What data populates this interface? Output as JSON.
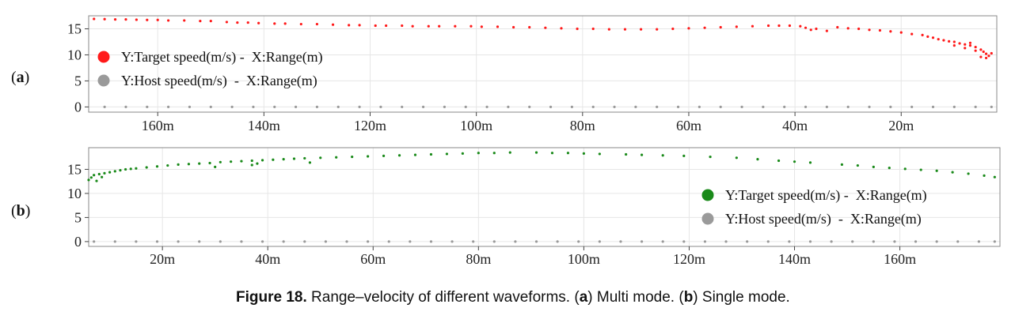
{
  "caption": {
    "label": "Figure 18.",
    "text": "Range–velocity of different waveforms.",
    "part_a_letter": "a",
    "part_a_text": "Multi mode.",
    "part_b_letter": "b",
    "part_b_text": "Single mode."
  },
  "colors": {
    "target_a": "#ff1a1a",
    "target_b": "#1a8a1a",
    "host": "#9a9a9a",
    "grid": "#e6e6e6",
    "frame": "#888888"
  },
  "chart_data": [
    {
      "type": "scatter",
      "panel_label": "(a)",
      "x_direction": "reversed",
      "xlim": [
        173,
        2
      ],
      "ylim": [
        -1,
        17.5
      ],
      "xticks": [
        160,
        140,
        120,
        100,
        80,
        60,
        40,
        20
      ],
      "xtick_labels": [
        "160m",
        "140m",
        "120m",
        "100m",
        "80m",
        "60m",
        "40m",
        "20m"
      ],
      "yticks": [
        0,
        5,
        10,
        15
      ],
      "ytick_labels": [
        "0",
        "5",
        "10",
        "15"
      ],
      "grid": true,
      "legend_position": "left",
      "series": [
        {
          "name": "Y:Target speed(m/s) -  X:Range(m)",
          "color": "#ff1a1a",
          "points": [
            [
              172,
              16.9
            ],
            [
              170,
              16.85
            ],
            [
              168,
              16.8
            ],
            [
              166,
              16.8
            ],
            [
              164,
              16.75
            ],
            [
              162,
              16.7
            ],
            [
              160,
              16.7
            ],
            [
              158,
              16.6
            ],
            [
              155,
              16.6
            ],
            [
              152,
              16.5
            ],
            [
              150,
              16.5
            ],
            [
              147,
              16.3
            ],
            [
              145,
              16.2
            ],
            [
              143,
              16.2
            ],
            [
              141,
              16.1
            ],
            [
              138,
              16.0
            ],
            [
              136,
              16.0
            ],
            [
              133,
              15.9
            ],
            [
              130,
              15.9
            ],
            [
              127,
              15.8
            ],
            [
              124,
              15.7
            ],
            [
              122,
              15.7
            ],
            [
              119,
              15.6
            ],
            [
              117,
              15.6
            ],
            [
              114,
              15.6
            ],
            [
              112,
              15.5
            ],
            [
              109,
              15.5
            ],
            [
              107,
              15.5
            ],
            [
              104,
              15.5
            ],
            [
              101,
              15.5
            ],
            [
              99,
              15.4
            ],
            [
              96,
              15.4
            ],
            [
              93,
              15.3
            ],
            [
              90,
              15.3
            ],
            [
              87,
              15.2
            ],
            [
              84,
              15.1
            ],
            [
              81,
              15.0
            ],
            [
              78,
              15.0
            ],
            [
              75,
              14.9
            ],
            [
              72,
              14.9
            ],
            [
              69,
              14.9
            ],
            [
              66,
              14.9
            ],
            [
              63,
              15.0
            ],
            [
              60,
              15.1
            ],
            [
              57,
              15.2
            ],
            [
              54,
              15.3
            ],
            [
              51,
              15.4
            ],
            [
              48,
              15.5
            ],
            [
              45,
              15.6
            ],
            [
              43,
              15.6
            ],
            [
              41,
              15.6
            ],
            [
              39,
              15.5
            ],
            [
              38,
              15.2
            ],
            [
              37,
              14.8
            ],
            [
              36,
              15.0
            ],
            [
              34,
              14.6
            ],
            [
              32,
              15.3
            ],
            [
              30,
              15.1
            ],
            [
              28,
              15.0
            ],
            [
              26,
              14.8
            ],
            [
              24,
              14.7
            ],
            [
              22,
              14.5
            ],
            [
              20,
              14.3
            ],
            [
              18,
              14.0
            ],
            [
              16,
              13.8
            ],
            [
              15,
              13.5
            ],
            [
              14,
              13.3
            ],
            [
              13,
              13.0
            ],
            [
              12,
              12.8
            ],
            [
              11,
              12.6
            ],
            [
              10,
              12.5
            ],
            [
              9,
              12.2
            ],
            [
              8,
              12.0
            ],
            [
              7,
              11.8
            ],
            [
              6,
              11.5
            ],
            [
              5,
              11.0
            ],
            [
              4.5,
              10.6
            ],
            [
              4,
              10.2
            ],
            [
              3.5,
              9.8
            ],
            [
              3,
              10.3
            ],
            [
              8,
              11.3
            ],
            [
              6,
              10.8
            ],
            [
              5,
              9.6
            ],
            [
              10,
              11.8
            ],
            [
              7,
              12.3
            ],
            [
              4,
              9.4
            ]
          ]
        },
        {
          "name": "Y:Host speed(m/s)  -  X:Range(m)",
          "color": "#9a9a9a",
          "points": [
            [
              170,
              0
            ],
            [
              166,
              0
            ],
            [
              162,
              0
            ],
            [
              158,
              0
            ],
            [
              154,
              0
            ],
            [
              150,
              0
            ],
            [
              146,
              0
            ],
            [
              142,
              0
            ],
            [
              138,
              0
            ],
            [
              134,
              0
            ],
            [
              130,
              0
            ],
            [
              126,
              0
            ],
            [
              122,
              0
            ],
            [
              118,
              0
            ],
            [
              114,
              0
            ],
            [
              110,
              0
            ],
            [
              106,
              0
            ],
            [
              102,
              0
            ],
            [
              98,
              0
            ],
            [
              94,
              0
            ],
            [
              90,
              0
            ],
            [
              86,
              0
            ],
            [
              82,
              0
            ],
            [
              78,
              0
            ],
            [
              74,
              0
            ],
            [
              70,
              0
            ],
            [
              66,
              0
            ],
            [
              62,
              0
            ],
            [
              58,
              0
            ],
            [
              54,
              0
            ],
            [
              50,
              0
            ],
            [
              46,
              0
            ],
            [
              42,
              0
            ],
            [
              38,
              0
            ],
            [
              34,
              0
            ],
            [
              30,
              0
            ],
            [
              26,
              0
            ],
            [
              22,
              0
            ],
            [
              18,
              0
            ],
            [
              14,
              0
            ],
            [
              10,
              0
            ],
            [
              6,
              0
            ],
            [
              3,
              0
            ]
          ]
        }
      ]
    },
    {
      "type": "scatter",
      "panel_label": "(b)",
      "x_direction": "normal",
      "xlim": [
        6,
        179
      ],
      "ylim": [
        -1,
        19.5
      ],
      "xticks": [
        20,
        40,
        60,
        80,
        100,
        120,
        140,
        160
      ],
      "xtick_labels": [
        "20m",
        "40m",
        "60m",
        "80m",
        "100m",
        "120m",
        "140m",
        "160m"
      ],
      "yticks": [
        0,
        5,
        10,
        15
      ],
      "ytick_labels": [
        "0",
        "5",
        "10",
        "15"
      ],
      "grid": true,
      "legend_position": "right",
      "series": [
        {
          "name": "Y:Target speed(m/s) -  X:Range(m)",
          "color": "#1a8a1a",
          "points": [
            [
              6,
              12.8
            ],
            [
              6.5,
              13.3
            ],
            [
              7,
              13.8
            ],
            [
              7.5,
              12.6
            ],
            [
              8,
              14.0
            ],
            [
              8.5,
              13.4
            ],
            [
              9,
              14.2
            ],
            [
              10,
              14.4
            ],
            [
              11,
              14.6
            ],
            [
              12,
              14.8
            ],
            [
              13,
              15.0
            ],
            [
              14,
              15.1
            ],
            [
              15,
              15.2
            ],
            [
              17,
              15.4
            ],
            [
              19,
              15.6
            ],
            [
              21,
              15.8
            ],
            [
              23,
              16.0
            ],
            [
              25,
              16.1
            ],
            [
              27,
              16.2
            ],
            [
              29,
              16.3
            ],
            [
              31,
              16.5
            ],
            [
              33,
              16.6
            ],
            [
              35,
              16.7
            ],
            [
              37,
              16.8
            ],
            [
              39,
              16.9
            ],
            [
              41,
              17.0
            ],
            [
              43,
              17.1
            ],
            [
              45,
              17.2
            ],
            [
              47,
              17.3
            ],
            [
              50,
              17.4
            ],
            [
              53,
              17.5
            ],
            [
              56,
              17.6
            ],
            [
              59,
              17.7
            ],
            [
              62,
              17.8
            ],
            [
              65,
              17.9
            ],
            [
              68,
              18.0
            ],
            [
              71,
              18.1
            ],
            [
              74,
              18.2
            ],
            [
              77,
              18.3
            ],
            [
              80,
              18.4
            ],
            [
              83,
              18.4
            ],
            [
              86,
              18.5
            ],
            [
              91,
              18.5
            ],
            [
              94,
              18.4
            ],
            [
              97,
              18.4
            ],
            [
              100,
              18.3
            ],
            [
              103,
              18.2
            ],
            [
              108,
              18.1
            ],
            [
              111,
              18.0
            ],
            [
              115,
              17.9
            ],
            [
              119,
              17.8
            ],
            [
              124,
              17.6
            ],
            [
              129,
              17.4
            ],
            [
              133,
              17.1
            ],
            [
              137,
              16.8
            ],
            [
              140,
              16.6
            ],
            [
              143,
              16.4
            ],
            [
              149,
              16.0
            ],
            [
              152,
              15.8
            ],
            [
              155,
              15.5
            ],
            [
              158,
              15.3
            ],
            [
              161,
              15.1
            ],
            [
              164,
              14.9
            ],
            [
              167,
              14.7
            ],
            [
              170,
              14.4
            ],
            [
              173,
              14.1
            ],
            [
              176,
              13.7
            ],
            [
              178,
              13.4
            ],
            [
              30,
              15.5
            ],
            [
              37,
              15.9
            ],
            [
              48,
              16.4
            ],
            [
              38,
              16.2
            ]
          ]
        },
        {
          "name": "Y:Host speed(m/s)  -  X:Range(m)",
          "color": "#9a9a9a",
          "points": [
            [
              7,
              0
            ],
            [
              11,
              0
            ],
            [
              15,
              0
            ],
            [
              19,
              0
            ],
            [
              23,
              0
            ],
            [
              27,
              0
            ],
            [
              31,
              0
            ],
            [
              35,
              0
            ],
            [
              39,
              0
            ],
            [
              43,
              0
            ],
            [
              47,
              0
            ],
            [
              51,
              0
            ],
            [
              55,
              0
            ],
            [
              59,
              0
            ],
            [
              63,
              0
            ],
            [
              67,
              0
            ],
            [
              71,
              0
            ],
            [
              75,
              0
            ],
            [
              79,
              0
            ],
            [
              83,
              0
            ],
            [
              87,
              0
            ],
            [
              91,
              0
            ],
            [
              95,
              0
            ],
            [
              99,
              0
            ],
            [
              103,
              0
            ],
            [
              107,
              0
            ],
            [
              111,
              0
            ],
            [
              115,
              0
            ],
            [
              119,
              0
            ],
            [
              123,
              0
            ],
            [
              127,
              0
            ],
            [
              131,
              0
            ],
            [
              135,
              0
            ],
            [
              139,
              0
            ],
            [
              143,
              0
            ],
            [
              147,
              0
            ],
            [
              151,
              0
            ],
            [
              155,
              0
            ],
            [
              159,
              0
            ],
            [
              163,
              0
            ],
            [
              167,
              0
            ],
            [
              171,
              0
            ],
            [
              175,
              0
            ],
            [
              178,
              0
            ]
          ]
        }
      ]
    }
  ]
}
